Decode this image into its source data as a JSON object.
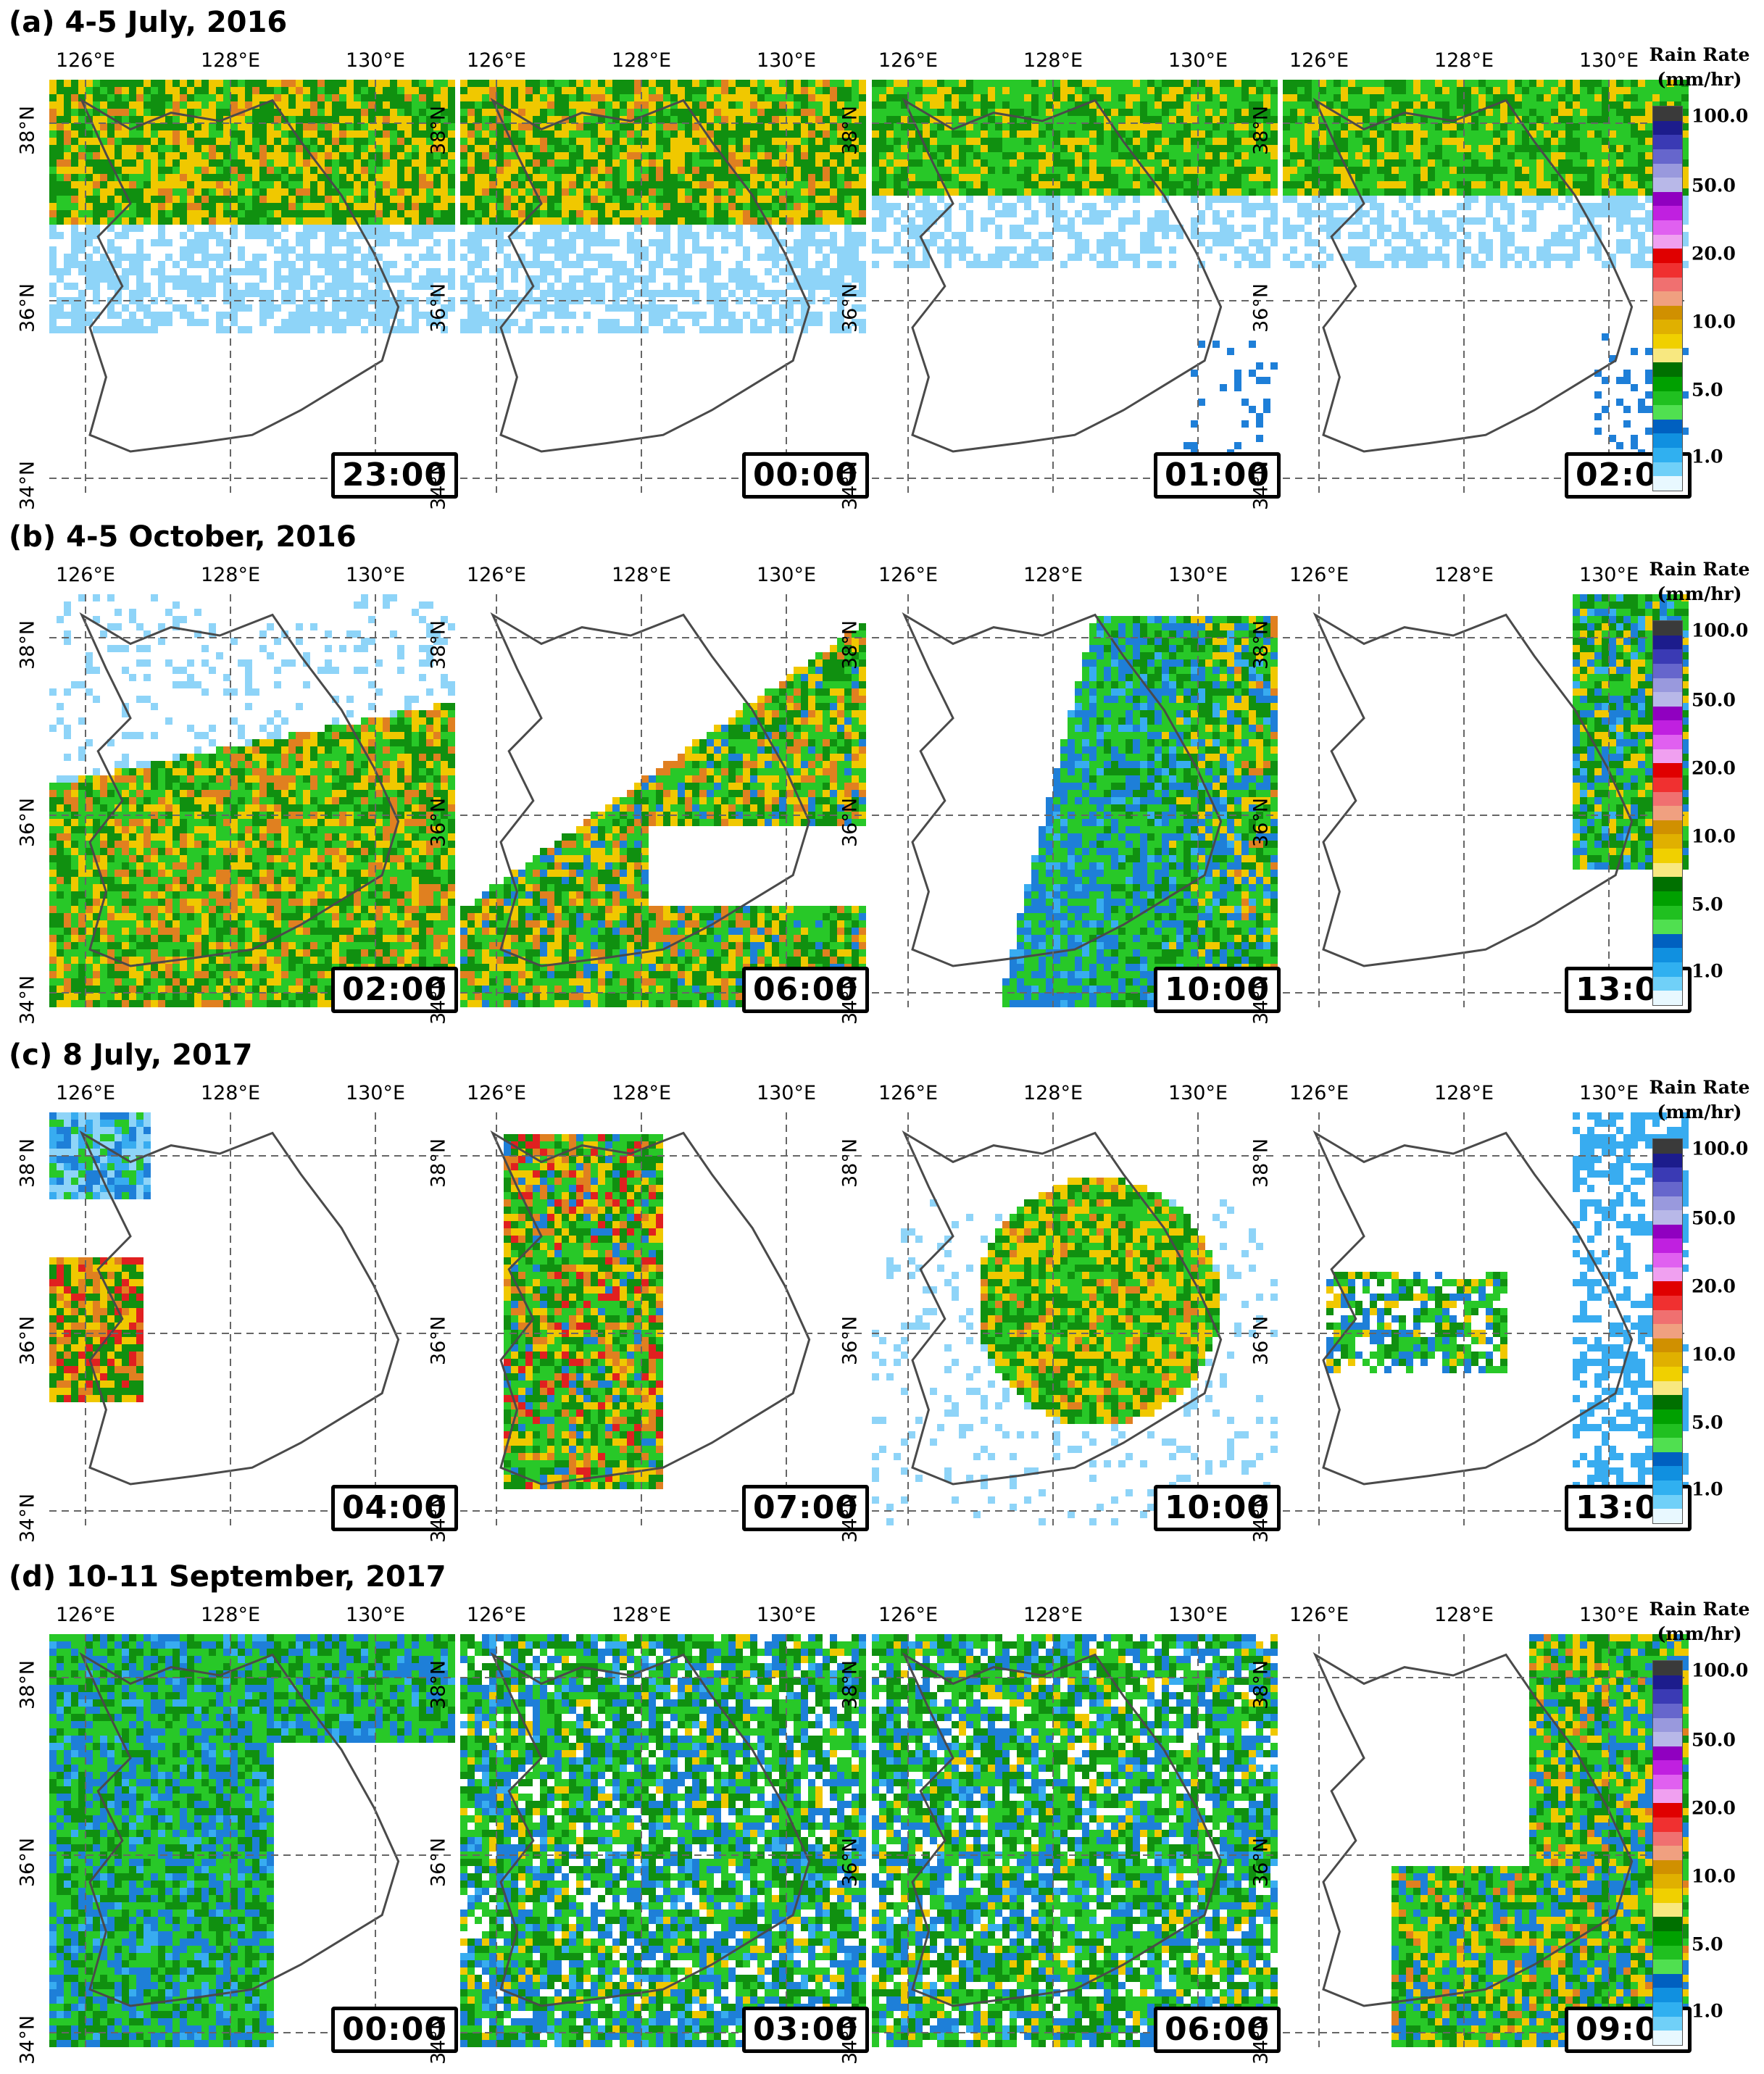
{
  "rows": [
    {
      "title": "(a) 4-5 July, 2016",
      "panels": [
        {
          "time": "23:00",
          "pattern": "north"
        },
        {
          "time": "00:00",
          "pattern": "north"
        },
        {
          "time": "01:00",
          "pattern": "north-light"
        },
        {
          "time": "02:00",
          "pattern": "north-light"
        }
      ]
    },
    {
      "title": "(b) 4-5 October, 2016",
      "panels": [
        {
          "time": "02:00",
          "pattern": "south"
        },
        {
          "time": "06:00",
          "pattern": "diag"
        },
        {
          "time": "10:00",
          "pattern": "east-band"
        },
        {
          "time": "13:00",
          "pattern": "far-east"
        }
      ]
    },
    {
      "title": "(c) 8 July, 2017",
      "panels": [
        {
          "time": "04:00",
          "pattern": "west-spot"
        },
        {
          "time": "07:00",
          "pattern": "west-band"
        },
        {
          "time": "10:00",
          "pattern": "center"
        },
        {
          "time": "13:00",
          "pattern": "center-small"
        }
      ]
    },
    {
      "title": "(d) 10-11 September, 2017",
      "panels": [
        {
          "time": "00:00",
          "pattern": "west-wide"
        },
        {
          "time": "03:00",
          "pattern": "full"
        },
        {
          "time": "06:00",
          "pattern": "full"
        },
        {
          "time": "09:00",
          "pattern": "southeast"
        }
      ]
    }
  ],
  "axes": {
    "lon_labels": [
      "126°E",
      "128°E",
      "130°E"
    ],
    "lat_labels": [
      "38°N",
      "36°N",
      "34°N"
    ]
  },
  "legend": {
    "title_line1": "Rain Rate",
    "title_line2": "(mm/hr)",
    "labels": [
      "100.0",
      "50.0",
      "20.0",
      "10.0",
      "5.0",
      "1.0"
    ],
    "colors": [
      "#3a3a3a",
      "#1c1c8c",
      "#3a3ab4",
      "#6666cc",
      "#9999dd",
      "#b8b8e8",
      "#9000c0",
      "#c020e0",
      "#e060f0",
      "#f0a0f0",
      "#e00000",
      "#f03030",
      "#f07070",
      "#f0a080",
      "#d09000",
      "#e0b000",
      "#f0d000",
      "#f8e880",
      "#007000",
      "#00a000",
      "#20c020",
      "#50e050",
      "#0060c0",
      "#1090e0",
      "#30b0f0",
      "#70d0f8",
      "#e8f8ff"
    ]
  }
}
